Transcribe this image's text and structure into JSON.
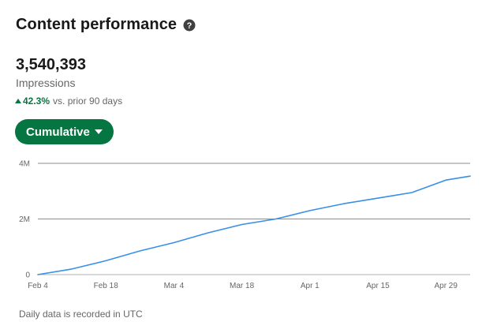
{
  "header": {
    "title": "Content performance",
    "help_icon": "question-circle-icon"
  },
  "metric": {
    "value": "3,540,393",
    "label": "Impressions",
    "delta_value": "42.3%",
    "delta_text": "vs. prior 90 days",
    "delta_icon": "caret-up-icon",
    "delta_color": "#057642"
  },
  "dropdown": {
    "label": "Cumulative",
    "icon": "caret-down-icon",
    "color": "#057642"
  },
  "chart_data": {
    "type": "line",
    "yticks": [
      "4M",
      "2M",
      "0"
    ],
    "ylim": [
      0,
      4000000
    ],
    "grid": true,
    "x": [
      0,
      7,
      14,
      21,
      28,
      35,
      42,
      49,
      56,
      63,
      70,
      77,
      84,
      89
    ],
    "xtick_labels": [
      "Feb 4",
      "Feb 18",
      "Mar 4",
      "Mar 18",
      "Apr 1",
      "Apr 15",
      "Apr 29"
    ],
    "xtick_positions": [
      0,
      14,
      28,
      42,
      56,
      70,
      84
    ],
    "series": [
      {
        "color": "#378fe9",
        "values": [
          0,
          200000,
          500000,
          850000,
          1150000,
          1500000,
          1800000,
          2000000,
          2300000,
          2550000,
          2750000,
          2950000,
          3400000,
          3540393
        ]
      }
    ]
  },
  "footer": {
    "note": "Daily data is recorded in UTC"
  }
}
